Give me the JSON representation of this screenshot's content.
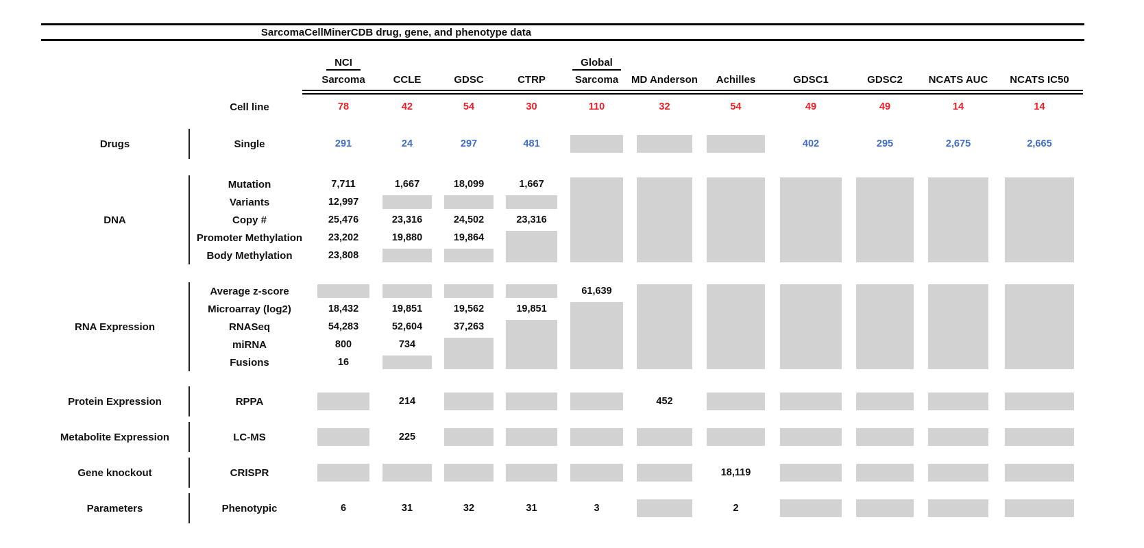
{
  "colors": {
    "red": "#ee1c25",
    "blue": "#3f6dc8",
    "box_gray": "#d2d2d2",
    "line": "#111111"
  },
  "chart_data": {
    "type": "table",
    "title": "SarcomaCellMinerCDB drug, gene, and phenotype data",
    "columns": [
      {
        "id": "nci_sarcoma",
        "label_top": "NCI",
        "label": "Sarcoma"
      },
      {
        "id": "ccle",
        "label": "CCLE"
      },
      {
        "id": "gdsc",
        "label": "GDSC"
      },
      {
        "id": "ctrp",
        "label": "CTRP"
      },
      {
        "id": "global_sarcoma",
        "label_top": "Global",
        "label": "Sarcoma"
      },
      {
        "id": "md_anderson",
        "label": "MD Anderson"
      },
      {
        "id": "achilles",
        "label": "Achilles"
      },
      {
        "id": "gdsc1",
        "label": "GDSC1"
      },
      {
        "id": "gdsc2",
        "label": "GDSC2"
      },
      {
        "id": "ncats_auc",
        "label": "NCATS AUC"
      },
      {
        "id": "ncats_ic50",
        "label": "NCATS IC50"
      }
    ],
    "cell_line_row": {
      "label": "Cell line",
      "values": [
        "78",
        "42",
        "54",
        "30",
        "110",
        "32",
        "54",
        "49",
        "49",
        "14",
        "14"
      ]
    },
    "sections": [
      {
        "category": "Drugs",
        "rows": [
          {
            "label": "Single",
            "value_color": "blue",
            "values": [
              "291",
              "24",
              "297",
              "481",
              {
                "box": 1
              },
              {
                "box": 1
              },
              {
                "box": 1
              },
              "402",
              "295",
              "2,675",
              "2,665"
            ]
          }
        ]
      },
      {
        "category": "DNA",
        "rows": [
          {
            "label": "Mutation",
            "values": [
              "7,711",
              "1,667",
              "18,099",
              "1,667",
              {
                "box": 5
              },
              {
                "box": 5
              },
              {
                "box": 5
              },
              {
                "box": 5
              },
              {
                "box": 5
              },
              {
                "box": 5
              },
              {
                "box": 5
              }
            ]
          },
          {
            "label": "Variants",
            "values": [
              "12,997",
              {
                "box": 1
              },
              {
                "box": 1
              },
              {
                "box": 1
              },
              null,
              null,
              null,
              null,
              null,
              null,
              null
            ]
          },
          {
            "label": "Copy #",
            "values": [
              "25,476",
              "23,316",
              "24,502",
              "23,316",
              null,
              null,
              null,
              null,
              null,
              null,
              null
            ]
          },
          {
            "label": "Promoter Methylation",
            "values": [
              "23,202",
              "19,880",
              "19,864",
              {
                "box": 2
              },
              null,
              null,
              null,
              null,
              null,
              null,
              null
            ]
          },
          {
            "label": "Body Methylation",
            "values": [
              "23,808",
              {
                "box": 1
              },
              {
                "box": 1
              },
              null,
              null,
              null,
              null,
              null,
              null,
              null,
              null
            ]
          }
        ]
      },
      {
        "category": "RNA Expression",
        "rows": [
          {
            "label": "Average z-score",
            "values": [
              {
                "box": 1
              },
              {
                "box": 1
              },
              {
                "box": 1
              },
              {
                "box": 1
              },
              "61,639",
              {
                "box": 5
              },
              {
                "box": 5
              },
              {
                "box": 5
              },
              {
                "box": 5
              },
              {
                "box": 5
              },
              {
                "box": 5
              }
            ]
          },
          {
            "label": "Microarray (log2)",
            "values": [
              "18,432",
              "19,851",
              "19,562",
              "19,851",
              {
                "box": 4
              },
              null,
              null,
              null,
              null,
              null,
              null
            ]
          },
          {
            "label": "RNASeq",
            "values": [
              "54,283",
              "52,604",
              "37,263",
              {
                "box": 3
              },
              null,
              null,
              null,
              null,
              null,
              null,
              null
            ]
          },
          {
            "label": "miRNA",
            "values": [
              "800",
              "734",
              {
                "box": 2
              },
              null,
              null,
              null,
              null,
              null,
              null,
              null,
              null
            ]
          },
          {
            "label": "Fusions",
            "values": [
              "16",
              {
                "box": 1
              },
              null,
              null,
              null,
              null,
              null,
              null,
              null,
              null,
              null
            ]
          }
        ]
      },
      {
        "category": "Protein Expression",
        "rows": [
          {
            "label": "RPPA",
            "values": [
              {
                "box": 1
              },
              "214",
              {
                "box": 1
              },
              {
                "box": 1
              },
              {
                "box": 1
              },
              "452",
              {
                "box": 1
              },
              {
                "box": 1
              },
              {
                "box": 1
              },
              {
                "box": 1
              },
              {
                "box": 1
              }
            ]
          }
        ]
      },
      {
        "category": "Metabolite Expression",
        "rows": [
          {
            "label": "LC-MS",
            "values": [
              {
                "box": 1
              },
              "225",
              {
                "box": 1
              },
              {
                "box": 1
              },
              {
                "box": 1
              },
              {
                "box": 1
              },
              {
                "box": 1
              },
              {
                "box": 1
              },
              {
                "box": 1
              },
              {
                "box": 1
              },
              {
                "box": 1
              }
            ]
          }
        ]
      },
      {
        "category": "Gene knockout",
        "rows": [
          {
            "label": "CRISPR",
            "values": [
              {
                "box": 1
              },
              {
                "box": 1
              },
              {
                "box": 1
              },
              {
                "box": 1
              },
              {
                "box": 1
              },
              {
                "box": 1
              },
              "18,119",
              {
                "box": 1
              },
              {
                "box": 1
              },
              {
                "box": 1
              },
              {
                "box": 1
              }
            ]
          }
        ]
      },
      {
        "category": "Parameters",
        "rows": [
          {
            "label": "Phenotypic",
            "values": [
              "6",
              "31",
              "32",
              "31",
              "3",
              {
                "box": 1
              },
              "2",
              {
                "box": 1
              },
              {
                "box": 1
              },
              {
                "box": 1
              },
              {
                "box": 1
              }
            ]
          }
        ]
      }
    ]
  }
}
